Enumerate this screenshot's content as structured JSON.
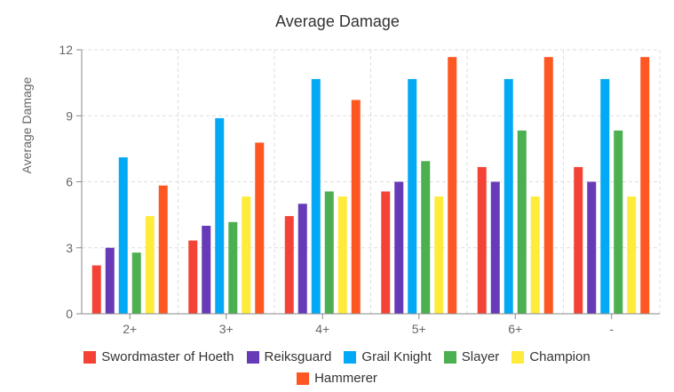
{
  "chart_data": {
    "type": "bar",
    "title": "Average Damage",
    "xlabel": "",
    "ylabel": "Average Damage",
    "ylim": [
      0,
      12
    ],
    "yticks": [
      0,
      3,
      6,
      9,
      12
    ],
    "grid": true,
    "legend_position": "bottom",
    "categories": [
      "2+",
      "3+",
      "4+",
      "5+",
      "6+",
      "-"
    ],
    "series": [
      {
        "name": "Swordmaster of Hoeth",
        "color": "#f44336",
        "values": [
          2.2,
          3.33,
          4.44,
          5.56,
          6.67,
          6.67
        ]
      },
      {
        "name": "Reiksguard",
        "color": "#673ab7",
        "values": [
          3.0,
          4.0,
          5.0,
          6.0,
          6.0,
          6.0
        ]
      },
      {
        "name": "Grail Knight",
        "color": "#03a9f4",
        "values": [
          7.11,
          8.89,
          10.67,
          10.67,
          10.67,
          10.67
        ]
      },
      {
        "name": "Slayer",
        "color": "#4caf50",
        "values": [
          2.78,
          4.17,
          5.56,
          6.94,
          8.33,
          8.33
        ]
      },
      {
        "name": "Champion",
        "color": "#ffeb3b",
        "values": [
          4.44,
          5.33,
          5.33,
          5.33,
          5.33,
          5.33
        ]
      },
      {
        "name": "Hammerer",
        "color": "#ff5722",
        "values": [
          5.83,
          7.78,
          9.72,
          11.67,
          11.67,
          11.67
        ]
      }
    ]
  }
}
